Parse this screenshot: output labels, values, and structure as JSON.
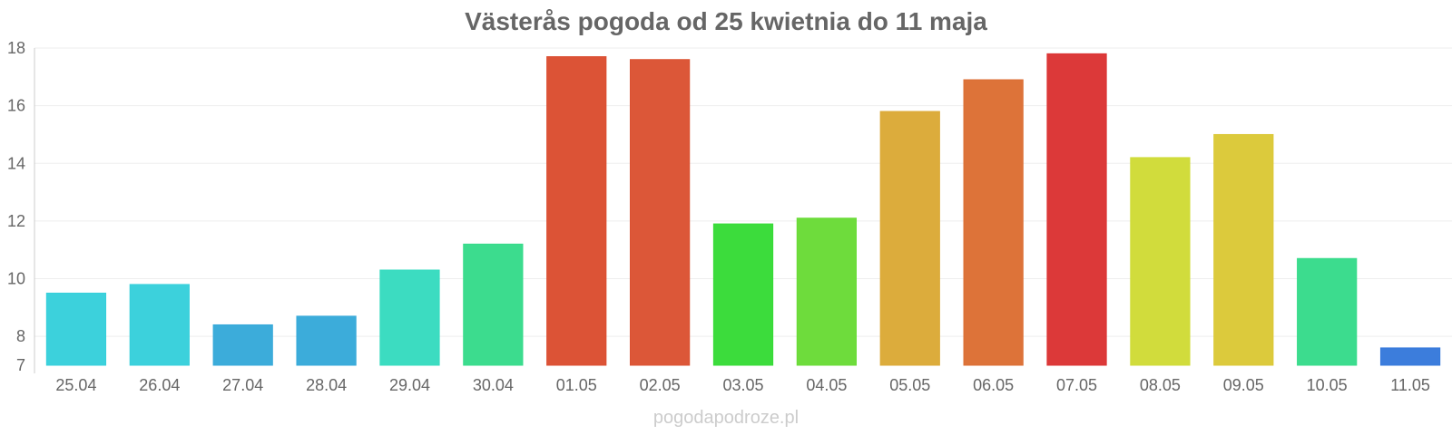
{
  "chart_data": {
    "type": "bar",
    "title": "Västerås pogoda od 25 kwietnia do 11 maja",
    "xlabel": "",
    "ylabel": "",
    "categories": [
      "25.04",
      "26.04",
      "27.04",
      "28.04",
      "29.04",
      "30.04",
      "01.05",
      "02.05",
      "03.05",
      "04.05",
      "05.05",
      "06.05",
      "07.05",
      "08.05",
      "09.05",
      "10.05",
      "11.05"
    ],
    "values": [
      9.5,
      9.8,
      8.4,
      8.7,
      10.3,
      11.2,
      17.7,
      17.6,
      11.9,
      12.1,
      15.8,
      16.9,
      17.8,
      14.2,
      15.0,
      10.7,
      7.6
    ],
    "colors": [
      "#36d0db",
      "#36d0db",
      "#36a9d9",
      "#36a9d9",
      "#36dbbf",
      "#36db8a",
      "#db4d30",
      "#db5232",
      "#36db36",
      "#69db36",
      "#dba936",
      "#dc6e33",
      "#db3333",
      "#cfdb36",
      "#dbc836",
      "#36db8a",
      "#3679db"
    ],
    "ylim": [
      7,
      18
    ],
    "yticks": [
      7,
      8,
      10,
      12,
      14,
      16,
      18
    ],
    "grid": true,
    "legend": "none"
  },
  "watermark": "pogodapodroze.pl"
}
